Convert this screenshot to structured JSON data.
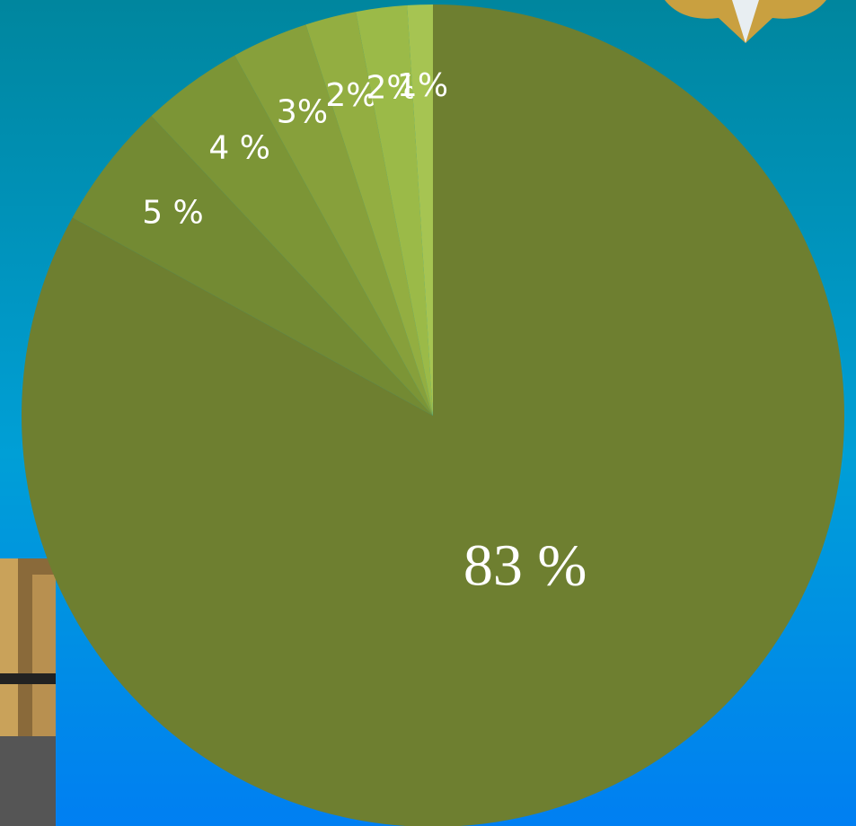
{
  "chart_data": {
    "type": "pie",
    "values": [
      83,
      5,
      4,
      3,
      2,
      2,
      1
    ],
    "value_labels": [
      "83 %",
      "5 %",
      "4 %",
      "3%",
      "2%",
      "2%",
      "1%"
    ],
    "colors": [
      "#6e7f30",
      "#738a33",
      "#7c9536",
      "#87a03b",
      "#93ae41",
      "#9bba48",
      "#a6c452"
    ]
  }
}
